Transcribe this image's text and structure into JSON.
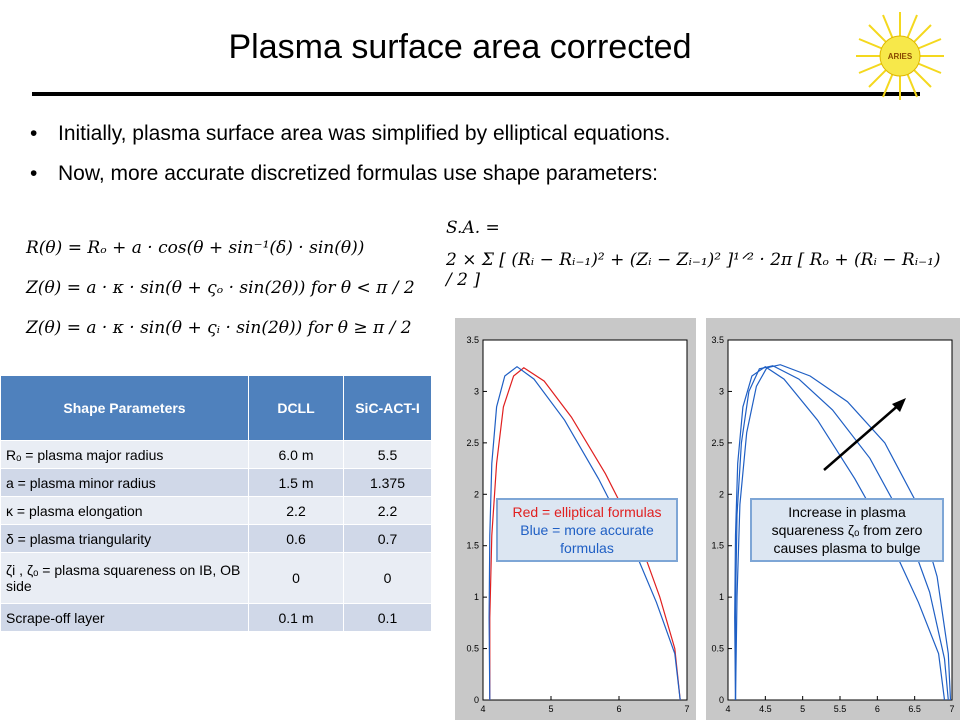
{
  "title": "Plasma surface area corrected",
  "logo_text": "ARIES",
  "bullets": [
    "Initially, plasma surface area was simplified by elliptical equations.",
    "Now, more accurate discretized formulas use shape parameters:"
  ],
  "equations": {
    "r": "R(θ) = Rₒ + a · cos(θ + sin⁻¹(δ) · sin(θ))",
    "z_outer": "Z(θ) = a · κ · sin(θ + ςₒ · sin(2θ))  for θ < π / 2",
    "z_inner": "Z(θ) = a · κ · sin(θ + ςᵢ · sin(2θ))  for θ ≥ π / 2",
    "sa_label": "S.A. =",
    "sa_formula": "2 × Σ [ (Rᵢ − Rᵢ₋₁)² + (Zᵢ − Zᵢ₋₁)² ]¹ᐟ² · 2π [ Rₒ + (Rᵢ − Rᵢ₋₁) / 2 ]"
  },
  "table": {
    "headers": [
      "Shape Parameters",
      "DCLL",
      "SiC-ACT-I"
    ],
    "rows": [
      [
        "Rₒ = plasma major radius",
        "6.0 m",
        "5.5"
      ],
      [
        "a = plasma minor radius",
        "1.5 m",
        "1.375"
      ],
      [
        "κ = plasma elongation",
        "2.2",
        "2.2"
      ],
      [
        "δ = plasma triangularity",
        "0.6",
        "0.7"
      ],
      [
        "ζi , ζₒ = plasma squareness on IB, OB side",
        "0",
        "0"
      ],
      [
        "Scrape-off layer",
        "0.1 m",
        "0.1"
      ]
    ]
  },
  "notes": {
    "left_red": "Red = elliptical formulas",
    "left_blue": "Blue = more accurate formulas",
    "right": "Increase in plasma squareness ζₒ from zero causes plasma to bulge"
  },
  "colors": {
    "table_header": "#4f81bd",
    "red_curve": "#e02020",
    "blue_curve": "#1f5fc4"
  },
  "chart_data": [
    {
      "type": "line",
      "xlim": [
        4,
        7
      ],
      "ylim": [
        0,
        3.5
      ],
      "xticks": [
        4,
        5,
        6,
        7
      ],
      "yticks": [
        0,
        0.5,
        1,
        1.5,
        2,
        2.5,
        3,
        3.5
      ],
      "series": [
        {
          "color": "#e02020",
          "points": [
            [
              4.1,
              0
            ],
            [
              4.1,
              0.8
            ],
            [
              4.13,
              1.6
            ],
            [
              4.2,
              2.3
            ],
            [
              4.3,
              2.85
            ],
            [
              4.45,
              3.15
            ],
            [
              4.6,
              3.23
            ],
            [
              4.9,
              3.1
            ],
            [
              5.3,
              2.75
            ],
            [
              5.8,
              2.2
            ],
            [
              6.3,
              1.55
            ],
            [
              6.6,
              1.0
            ],
            [
              6.82,
              0.5
            ],
            [
              6.9,
              0
            ]
          ]
        },
        {
          "color": "#1f5fc4",
          "points": [
            [
              4.1,
              0
            ],
            [
              4.09,
              0.8
            ],
            [
              4.1,
              1.6
            ],
            [
              4.13,
              2.3
            ],
            [
              4.2,
              2.85
            ],
            [
              4.32,
              3.15
            ],
            [
              4.5,
              3.24
            ],
            [
              4.75,
              3.12
            ],
            [
              5.2,
              2.72
            ],
            [
              5.7,
              2.15
            ],
            [
              6.2,
              1.5
            ],
            [
              6.55,
              0.95
            ],
            [
              6.82,
              0.45
            ],
            [
              6.9,
              0
            ]
          ]
        }
      ]
    },
    {
      "type": "line",
      "xlim": [
        4,
        7
      ],
      "ylim": [
        0,
        3.5
      ],
      "xticks": [
        4,
        4.5,
        5,
        5.5,
        6,
        6.5,
        7
      ],
      "yticks": [
        0,
        0.5,
        1,
        1.5,
        2,
        2.5,
        3,
        3.5
      ],
      "series": [
        {
          "color": "#1f5fc4",
          "points": [
            [
              4.1,
              0
            ],
            [
              4.09,
              0.8
            ],
            [
              4.1,
              1.6
            ],
            [
              4.13,
              2.3
            ],
            [
              4.2,
              2.85
            ],
            [
              4.32,
              3.15
            ],
            [
              4.5,
              3.24
            ],
            [
              4.75,
              3.12
            ],
            [
              5.2,
              2.72
            ],
            [
              5.7,
              2.15
            ],
            [
              6.2,
              1.5
            ],
            [
              6.55,
              0.95
            ],
            [
              6.82,
              0.45
            ],
            [
              6.9,
              0
            ]
          ]
        },
        {
          "color": "#1f5fc4",
          "points": [
            [
              4.1,
              0
            ],
            [
              4.1,
              0.9
            ],
            [
              4.12,
              1.8
            ],
            [
              4.18,
              2.5
            ],
            [
              4.28,
              3.0
            ],
            [
              4.42,
              3.22
            ],
            [
              4.6,
              3.25
            ],
            [
              4.95,
              3.12
            ],
            [
              5.4,
              2.82
            ],
            [
              5.9,
              2.35
            ],
            [
              6.35,
              1.75
            ],
            [
              6.7,
              1.05
            ],
            [
              6.9,
              0.4
            ],
            [
              6.95,
              0
            ]
          ]
        },
        {
          "color": "#1f5fc4",
          "points": [
            [
              4.1,
              0
            ],
            [
              4.12,
              1.0
            ],
            [
              4.16,
              1.9
            ],
            [
              4.25,
              2.6
            ],
            [
              4.38,
              3.05
            ],
            [
              4.52,
              3.23
            ],
            [
              4.7,
              3.26
            ],
            [
              5.1,
              3.15
            ],
            [
              5.6,
              2.9
            ],
            [
              6.1,
              2.5
            ],
            [
              6.5,
              1.95
            ],
            [
              6.8,
              1.2
            ],
            [
              6.95,
              0.45
            ],
            [
              6.98,
              0
            ]
          ]
        }
      ]
    }
  ]
}
